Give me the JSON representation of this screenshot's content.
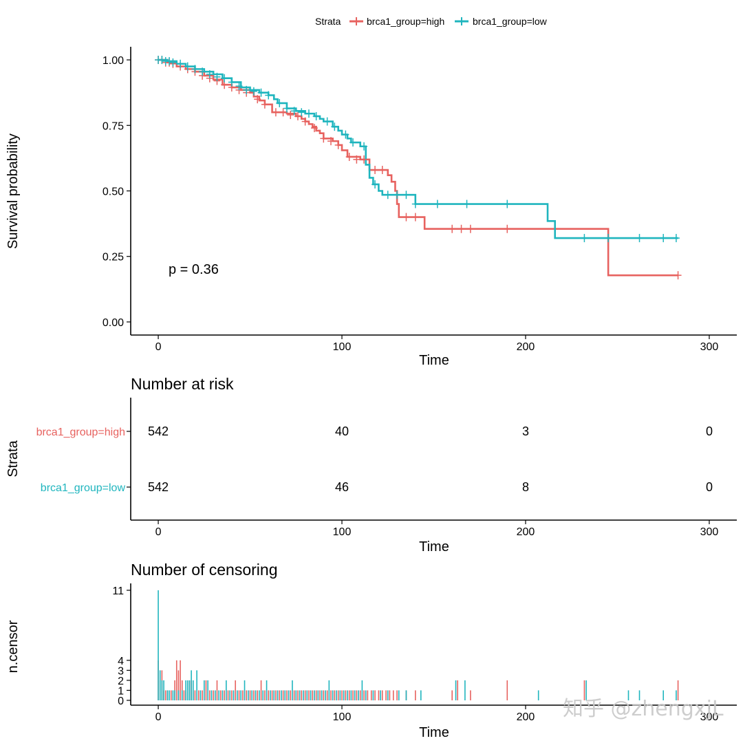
{
  "colors": {
    "high": "#E7625F",
    "low": "#1FB5BE"
  },
  "legend": {
    "title": "Strata",
    "items": [
      {
        "label": "brca1_group=high",
        "series": "high"
      },
      {
        "label": "brca1_group=low",
        "series": "low"
      }
    ]
  },
  "pvalue_text": "p = 0.36",
  "watermark_text": "知乎 @zhengxjL",
  "chart_data": [
    {
      "type": "line",
      "title": "",
      "xlabel": "Time",
      "ylabel": "Survival probability",
      "xlim": [
        -15,
        315
      ],
      "ylim": [
        -0.05,
        1.05
      ],
      "xticks": [
        0,
        100,
        200,
        300
      ],
      "xtick_labels": [
        "0",
        "100",
        "200",
        "300"
      ],
      "yticks": [
        0,
        0.25,
        0.5,
        0.75,
        1
      ],
      "ytick_labels": [
        "0.00",
        "0.25",
        "0.50",
        "0.75",
        "1.00"
      ],
      "series": [
        {
          "name": "brca1_group=high",
          "key": "high",
          "steps": [
            [
              0,
              1.0
            ],
            [
              5,
              0.99
            ],
            [
              10,
              0.975
            ],
            [
              15,
              0.965
            ],
            [
              20,
              0.955
            ],
            [
              25,
              0.94
            ],
            [
              30,
              0.925
            ],
            [
              35,
              0.905
            ],
            [
              40,
              0.895
            ],
            [
              45,
              0.885
            ],
            [
              50,
              0.875
            ],
            [
              52,
              0.86
            ],
            [
              55,
              0.845
            ],
            [
              58,
              0.83
            ],
            [
              62,
              0.8
            ],
            [
              70,
              0.795
            ],
            [
              75,
              0.785
            ],
            [
              78,
              0.775
            ],
            [
              80,
              0.765
            ],
            [
              82,
              0.755
            ],
            [
              84,
              0.745
            ],
            [
              86,
              0.73
            ],
            [
              88,
              0.72
            ],
            [
              90,
              0.7
            ],
            [
              95,
              0.69
            ],
            [
              98,
              0.675
            ],
            [
              100,
              0.655
            ],
            [
              103,
              0.63
            ],
            [
              110,
              0.62
            ],
            [
              115,
              0.58
            ],
            [
              125,
              0.56
            ],
            [
              127,
              0.535
            ],
            [
              129,
              0.5
            ],
            [
              130,
              0.45
            ],
            [
              131,
              0.4
            ],
            [
              145,
              0.355
            ],
            [
              245,
              0.178
            ],
            [
              283,
              0.178
            ]
          ],
          "censors": [
            [
              0,
              1.0
            ],
            [
              2,
              1.0
            ],
            [
              4,
              0.99
            ],
            [
              6,
              0.99
            ],
            [
              8,
              0.985
            ],
            [
              12,
              0.975
            ],
            [
              16,
              0.965
            ],
            [
              20,
              0.955
            ],
            [
              24,
              0.94
            ],
            [
              28,
              0.93
            ],
            [
              32,
              0.92
            ],
            [
              36,
              0.905
            ],
            [
              40,
              0.895
            ],
            [
              44,
              0.885
            ],
            [
              48,
              0.875
            ],
            [
              54,
              0.85
            ],
            [
              58,
              0.83
            ],
            [
              64,
              0.8
            ],
            [
              68,
              0.8
            ],
            [
              72,
              0.79
            ],
            [
              76,
              0.785
            ],
            [
              80,
              0.765
            ],
            [
              85,
              0.74
            ],
            [
              90,
              0.7
            ],
            [
              94,
              0.69
            ],
            [
              98,
              0.675
            ],
            [
              104,
              0.63
            ],
            [
              108,
              0.62
            ],
            [
              112,
              0.62
            ],
            [
              118,
              0.58
            ],
            [
              122,
              0.58
            ],
            [
              135,
              0.4
            ],
            [
              140,
              0.4
            ],
            [
              160,
              0.355
            ],
            [
              165,
              0.355
            ],
            [
              170,
              0.355
            ],
            [
              190,
              0.355
            ],
            [
              283,
              0.178
            ]
          ]
        },
        {
          "name": "brca1_group=low",
          "key": "low",
          "steps": [
            [
              0,
              1.0
            ],
            [
              5,
              0.995
            ],
            [
              10,
              0.985
            ],
            [
              15,
              0.975
            ],
            [
              20,
              0.965
            ],
            [
              25,
              0.955
            ],
            [
              30,
              0.945
            ],
            [
              35,
              0.93
            ],
            [
              40,
              0.915
            ],
            [
              45,
              0.895
            ],
            [
              50,
              0.885
            ],
            [
              55,
              0.875
            ],
            [
              60,
              0.865
            ],
            [
              63,
              0.85
            ],
            [
              65,
              0.835
            ],
            [
              70,
              0.815
            ],
            [
              75,
              0.805
            ],
            [
              80,
              0.795
            ],
            [
              85,
              0.785
            ],
            [
              88,
              0.775
            ],
            [
              90,
              0.765
            ],
            [
              95,
              0.745
            ],
            [
              98,
              0.73
            ],
            [
              100,
              0.715
            ],
            [
              103,
              0.7
            ],
            [
              105,
              0.685
            ],
            [
              110,
              0.67
            ],
            [
              113,
              0.6
            ],
            [
              115,
              0.55
            ],
            [
              117,
              0.525
            ],
            [
              120,
              0.5
            ],
            [
              122,
              0.485
            ],
            [
              140,
              0.45
            ],
            [
              212,
              0.385
            ],
            [
              216,
              0.32
            ],
            [
              283,
              0.32
            ]
          ],
          "censors": [
            [
              0,
              1.0
            ],
            [
              2,
              1.0
            ],
            [
              4,
              0.995
            ],
            [
              6,
              0.995
            ],
            [
              8,
              0.99
            ],
            [
              12,
              0.985
            ],
            [
              16,
              0.975
            ],
            [
              20,
              0.965
            ],
            [
              24,
              0.955
            ],
            [
              28,
              0.945
            ],
            [
              32,
              0.935
            ],
            [
              36,
              0.93
            ],
            [
              40,
              0.915
            ],
            [
              44,
              0.9
            ],
            [
              48,
              0.885
            ],
            [
              52,
              0.88
            ],
            [
              56,
              0.875
            ],
            [
              60,
              0.865
            ],
            [
              66,
              0.835
            ],
            [
              70,
              0.815
            ],
            [
              74,
              0.805
            ],
            [
              78,
              0.8
            ],
            [
              82,
              0.795
            ],
            [
              86,
              0.785
            ],
            [
              92,
              0.765
            ],
            [
              96,
              0.745
            ],
            [
              102,
              0.715
            ],
            [
              106,
              0.685
            ],
            [
              112,
              0.67
            ],
            [
              118,
              0.525
            ],
            [
              125,
              0.485
            ],
            [
              130,
              0.485
            ],
            [
              135,
              0.485
            ],
            [
              140,
              0.45
            ],
            [
              152,
              0.45
            ],
            [
              168,
              0.45
            ],
            [
              190,
              0.45
            ],
            [
              232,
              0.32
            ],
            [
              245,
              0.32
            ],
            [
              262,
              0.32
            ],
            [
              275,
              0.32
            ],
            [
              282,
              0.32
            ]
          ]
        }
      ]
    },
    {
      "type": "table",
      "title": "Number at risk",
      "xlabel": "Time",
      "ylabel": "Strata",
      "xlim": [
        -15,
        315
      ],
      "xticks": [
        0,
        100,
        200,
        300
      ],
      "xtick_labels": [
        "0",
        "100",
        "200",
        "300"
      ],
      "rows": [
        {
          "strata": "brca1_group=high",
          "key": "high",
          "times": [
            0,
            100,
            200,
            300
          ],
          "values": [
            "542",
            "40",
            "3",
            "0"
          ]
        },
        {
          "strata": "brca1_group=low",
          "key": "low",
          "times": [
            0,
            100,
            200,
            300
          ],
          "values": [
            "542",
            "46",
            "8",
            "0"
          ]
        }
      ]
    },
    {
      "type": "bar",
      "title": "Number of censoring",
      "xlabel": "Time",
      "ylabel": "n.censor",
      "xlim": [
        -15,
        315
      ],
      "ylim": [
        0,
        11
      ],
      "xticks": [
        0,
        100,
        200,
        300
      ],
      "xtick_labels": [
        "0",
        "100",
        "200",
        "300"
      ],
      "yticks": [
        0,
        1,
        2,
        3,
        4,
        11
      ],
      "ytick_labels": [
        "0",
        "1",
        "2",
        "3",
        "4",
        "11"
      ],
      "series": [
        {
          "name": "brca1_group=high",
          "key": "high",
          "x": [
            0,
            1,
            2,
            3,
            4,
            5,
            7,
            9,
            10,
            11,
            12,
            13,
            14,
            15,
            17,
            18,
            19,
            20,
            22,
            24,
            26,
            28,
            30,
            32,
            34,
            36,
            38,
            40,
            42,
            44,
            46,
            48,
            50,
            52,
            54,
            56,
            58,
            60,
            62,
            64,
            66,
            68,
            70,
            72,
            74,
            76,
            78,
            80,
            82,
            84,
            86,
            88,
            90,
            92,
            94,
            96,
            98,
            100,
            102,
            104,
            106,
            108,
            110,
            112,
            114,
            116,
            118,
            120,
            122,
            124,
            126,
            128,
            130,
            135,
            140,
            160,
            163,
            170,
            190,
            232,
            283
          ],
          "values": [
            4,
            2,
            3,
            1,
            1,
            1,
            1,
            2,
            4,
            3,
            4,
            2,
            1,
            1,
            2,
            2,
            1,
            1,
            1,
            1,
            2,
            1,
            1,
            2,
            1,
            1,
            1,
            1,
            2,
            1,
            1,
            1,
            1,
            1,
            1,
            2,
            1,
            1,
            1,
            1,
            1,
            1,
            1,
            1,
            1,
            1,
            1,
            1,
            1,
            1,
            1,
            1,
            1,
            1,
            1,
            1,
            1,
            1,
            1,
            1,
            1,
            1,
            1,
            1,
            1,
            1,
            1,
            1,
            1,
            1,
            1,
            1,
            1,
            1,
            1,
            1,
            2,
            1,
            2,
            2,
            2
          ]
        },
        {
          "name": "brca1_group=low",
          "key": "low",
          "x": [
            0,
            1,
            2,
            3,
            5,
            6,
            8,
            9,
            11,
            13,
            15,
            16,
            17,
            18,
            19,
            21,
            23,
            25,
            27,
            29,
            31,
            33,
            35,
            37,
            39,
            41,
            43,
            45,
            47,
            49,
            51,
            53,
            55,
            57,
            59,
            61,
            63,
            65,
            67,
            69,
            71,
            73,
            75,
            77,
            79,
            81,
            83,
            85,
            87,
            89,
            91,
            93,
            95,
            97,
            99,
            101,
            103,
            105,
            107,
            109,
            111,
            113,
            117,
            121,
            125,
            131,
            135,
            143,
            162,
            167,
            207,
            233,
            256,
            262,
            275,
            282
          ],
          "values": [
            11,
            3,
            2,
            2,
            1,
            1,
            1,
            1,
            1,
            1,
            2,
            2,
            2,
            3,
            2,
            3,
            1,
            2,
            2,
            1,
            1,
            1,
            1,
            2,
            1,
            1,
            1,
            1,
            2,
            1,
            1,
            1,
            1,
            1,
            2,
            1,
            1,
            1,
            1,
            1,
            1,
            2,
            1,
            1,
            1,
            1,
            1,
            1,
            1,
            1,
            1,
            2,
            1,
            1,
            1,
            1,
            1,
            1,
            1,
            1,
            2,
            1,
            1,
            1,
            1,
            1,
            1,
            1,
            2,
            2,
            1,
            2,
            1,
            1,
            1,
            1
          ]
        }
      ]
    }
  ]
}
